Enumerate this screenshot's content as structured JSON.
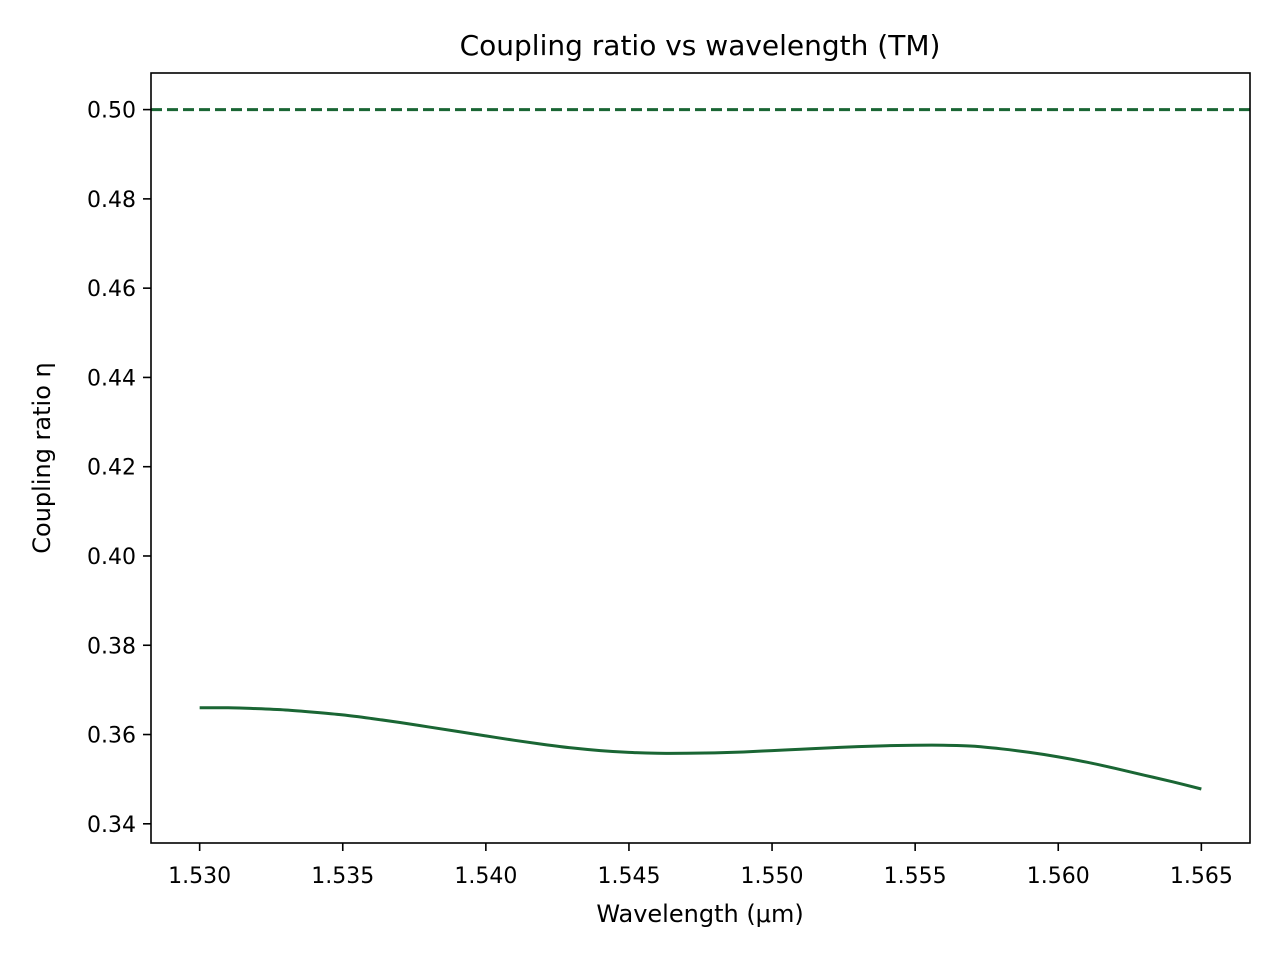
{
  "chart_data": {
    "type": "line",
    "title": "Coupling ratio vs wavelength (TM)",
    "xlabel": "Wavelength (μm)",
    "ylabel": "Coupling ratio η",
    "xlim": [
      1.5283,
      1.5667
    ],
    "ylim": [
      0.3357,
      0.5082
    ],
    "xticks": [
      1.53,
      1.535,
      1.54,
      1.545,
      1.55,
      1.555,
      1.56,
      1.565
    ],
    "xtick_labels": [
      "1.530",
      "1.535",
      "1.540",
      "1.545",
      "1.550",
      "1.555",
      "1.560",
      "1.565"
    ],
    "yticks": [
      0.34,
      0.36,
      0.38,
      0.4,
      0.42,
      0.44,
      0.46,
      0.48,
      0.5
    ],
    "ytick_labels": [
      "0.34",
      "0.36",
      "0.38",
      "0.40",
      "0.42",
      "0.44",
      "0.46",
      "0.48",
      "0.50"
    ],
    "grid": false,
    "reference_line": {
      "y": 0.5,
      "style": "dashed",
      "color": "#1a6634"
    },
    "series": [
      {
        "color": "#1a6634",
        "x": [
          1.53,
          1.531,
          1.532,
          1.533,
          1.534,
          1.535,
          1.536,
          1.537,
          1.538,
          1.539,
          1.54,
          1.541,
          1.542,
          1.543,
          1.544,
          1.545,
          1.546,
          1.547,
          1.548,
          1.549,
          1.55,
          1.551,
          1.552,
          1.553,
          1.554,
          1.555,
          1.556,
          1.557,
          1.558,
          1.559,
          1.56,
          1.561,
          1.562,
          1.563,
          1.564,
          1.565
        ],
        "y": [
          0.366,
          0.366,
          0.3658,
          0.3655,
          0.365,
          0.3644,
          0.3636,
          0.3627,
          0.3617,
          0.3607,
          0.3597,
          0.3587,
          0.3578,
          0.357,
          0.3564,
          0.356,
          0.3558,
          0.3558,
          0.3559,
          0.3561,
          0.3564,
          0.3567,
          0.357,
          0.3573,
          0.3575,
          0.3576,
          0.3576,
          0.3574,
          0.3568,
          0.356,
          0.355,
          0.3538,
          0.3524,
          0.3509,
          0.3494,
          0.3478
        ]
      }
    ]
  }
}
